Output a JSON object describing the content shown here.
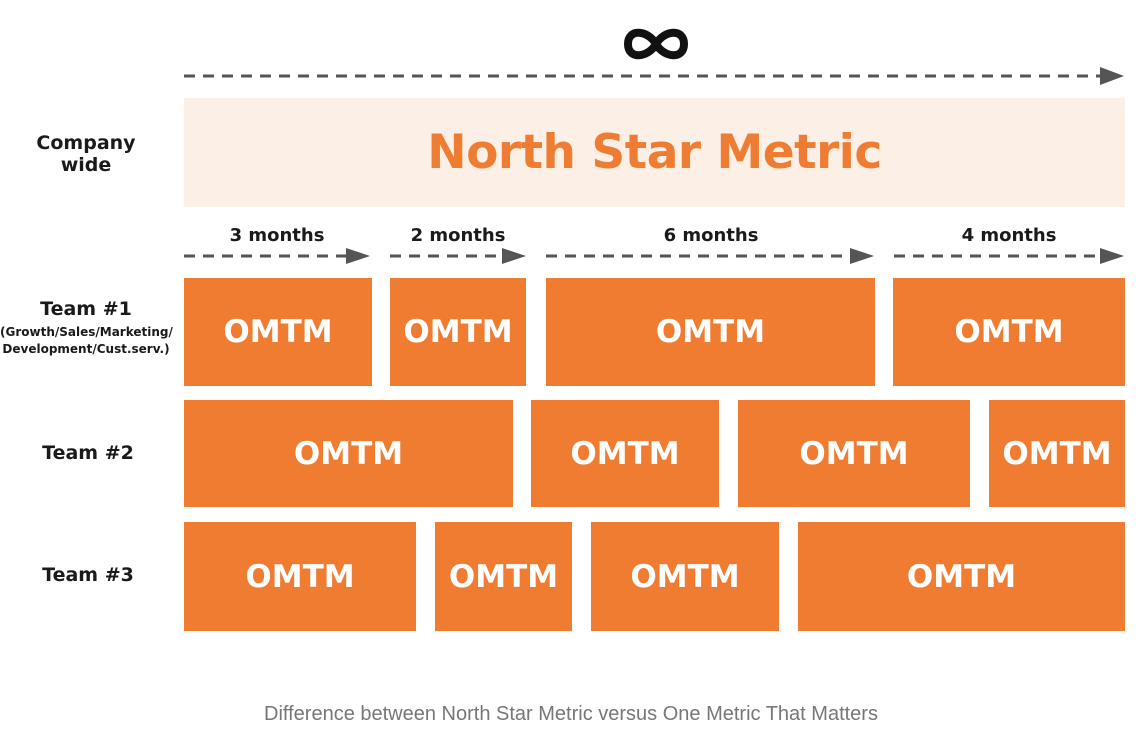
{
  "top_symbol": "∞",
  "company": {
    "label": "Company wide",
    "metric": "North Star Metric"
  },
  "periods": [
    "3 months",
    "2 months",
    "6 months",
    "4 months"
  ],
  "teams": [
    {
      "label": "Team #1",
      "sublabel_line1": "(Growth/Sales/Marketing/",
      "sublabel_line2": "Development/Cust.serv.)",
      "blocks": [
        "OMTM",
        "OMTM",
        "OMTM",
        "OMTM"
      ]
    },
    {
      "label": "Team #2",
      "blocks": [
        "OMTM",
        "OMTM",
        "OMTM",
        "OMTM"
      ]
    },
    {
      "label": "Team #3",
      "blocks": [
        "OMTM",
        "OMTM",
        "OMTM",
        "OMTM"
      ]
    }
  ],
  "caption": "Difference between North Star Metric versus One Metric That Matters",
  "colors": {
    "accent": "#ef7c31",
    "banner_bg": "#fcefe5",
    "arrow": "#555555"
  }
}
